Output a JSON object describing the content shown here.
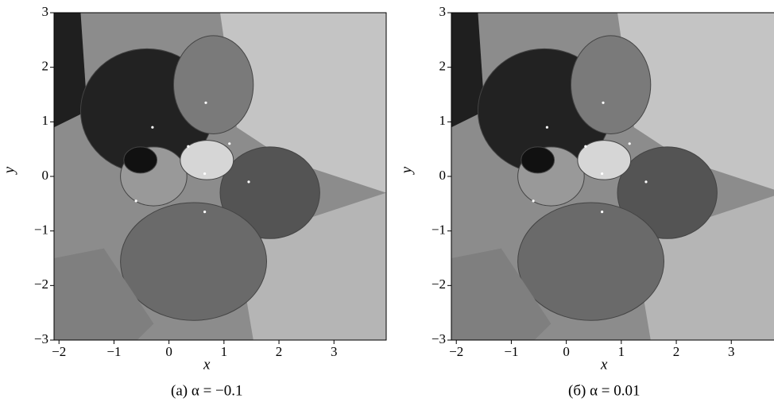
{
  "chart_data": [
    {
      "type": "scatter",
      "caption": "(а) α = −0.1",
      "x_label": "x",
      "y_label": "y",
      "xlim": [
        -2.09,
        3.95
      ],
      "ylim": [
        -3,
        3
      ],
      "xticks": [
        {
          "value": -2,
          "label": "−2"
        },
        {
          "value": -1,
          "label": "−1"
        },
        0,
        1,
        2,
        3
      ],
      "yticks": [
        {
          "value": -3,
          "label": "−3"
        },
        {
          "value": -2,
          "label": "−2"
        },
        {
          "value": -1,
          "label": "−1"
        },
        0,
        1,
        2,
        3
      ],
      "points": {
        "x": [
          0.67,
          -0.3,
          0.35,
          1.1,
          0.65,
          1.45,
          -0.6,
          0.65
        ],
        "y": [
          1.35,
          0.9,
          0.55,
          0.6,
          0.05,
          -0.1,
          -0.45,
          -0.65
        ]
      }
    },
    {
      "type": "scatter",
      "caption": "(б) α = 0.01",
      "x_label": "x",
      "y_label": "y",
      "xlim": [
        -2.09,
        3.95
      ],
      "ylim": [
        -3,
        3
      ],
      "xticks": [
        {
          "value": -2,
          "label": "−2"
        },
        {
          "value": -1,
          "label": "−1"
        },
        0,
        1,
        2,
        3
      ],
      "yticks": [
        {
          "value": -3,
          "label": "−3"
        },
        {
          "value": -2,
          "label": "−2"
        },
        {
          "value": -1,
          "label": "−1"
        },
        0,
        1,
        2,
        3
      ],
      "points": {
        "x": [
          0.67,
          -0.35,
          0.35,
          1.15,
          0.65,
          1.45,
          -0.6,
          0.65
        ],
        "y": [
          1.35,
          0.9,
          0.55,
          0.6,
          0.05,
          -0.1,
          -0.45,
          -0.65
        ]
      }
    }
  ]
}
